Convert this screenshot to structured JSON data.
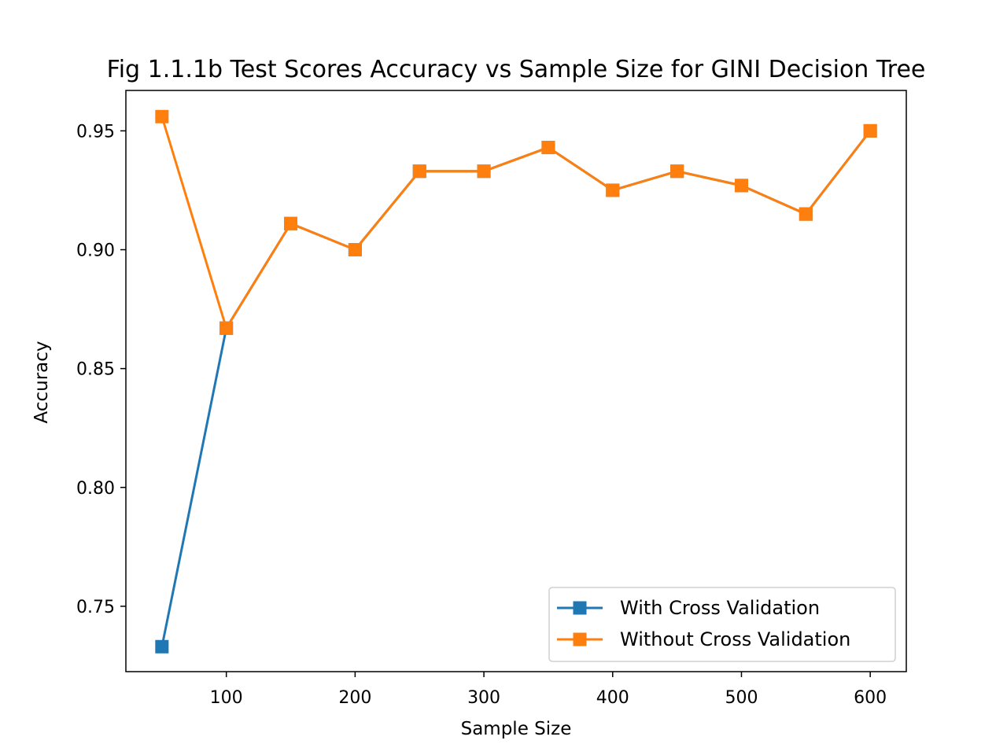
{
  "chart_data": {
    "type": "line",
    "title": "Fig 1.1.1b Test Scores Accuracy vs Sample Size for GINI Decision Tree",
    "xlabel": "Sample Size",
    "ylabel": "Accuracy",
    "xlim": [
      22,
      628
    ],
    "ylim": [
      0.7225,
      0.967
    ],
    "xticks": [
      100,
      200,
      300,
      400,
      500,
      600
    ],
    "xtick_labels": [
      "100",
      "200",
      "300",
      "400",
      "500",
      "600"
    ],
    "yticks": [
      0.75,
      0.8,
      0.85,
      0.9,
      0.95
    ],
    "ytick_labels": [
      "0.75",
      "0.80",
      "0.85",
      "0.90",
      "0.95"
    ],
    "grid": false,
    "legend_position": "bottom-right",
    "x": [
      50,
      100,
      150,
      200,
      250,
      300,
      350,
      400,
      450,
      500,
      550,
      600
    ],
    "series": [
      {
        "name": "With Cross Validation",
        "color": "#1f77b4",
        "marker": "square",
        "values": [
          0.733,
          0.867,
          0.911,
          0.9,
          0.933,
          0.933,
          0.943,
          0.925,
          0.933,
          0.927,
          0.915,
          0.95
        ]
      },
      {
        "name": "Without Cross Validation",
        "color": "#ff7f0e",
        "marker": "square",
        "values": [
          0.956,
          0.867,
          0.911,
          0.9,
          0.933,
          0.933,
          0.943,
          0.925,
          0.933,
          0.927,
          0.915,
          0.95
        ]
      }
    ]
  }
}
